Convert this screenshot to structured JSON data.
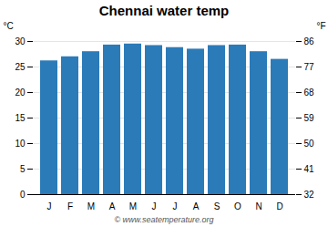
{
  "chart_data": {
    "type": "bar",
    "title": "Chennai water temp",
    "categories": [
      "J",
      "F",
      "M",
      "A",
      "M",
      "J",
      "J",
      "A",
      "S",
      "O",
      "N",
      "D"
    ],
    "values": [
      26.2,
      27.0,
      28.0,
      29.3,
      29.5,
      29.2,
      28.8,
      28.5,
      29.2,
      29.3,
      28.0,
      26.5
    ],
    "color": "#2b7bb9",
    "ylabel": "°C",
    "y2label": "°F",
    "ylim": [
      0,
      30
    ],
    "yticks": [
      0,
      5,
      10,
      15,
      20,
      25,
      30
    ],
    "y2lim": [
      32,
      86
    ],
    "y2ticks": [
      32,
      41,
      50,
      59,
      68,
      77,
      86
    ],
    "grid": true,
    "annotations": [
      "© www.seatemperature.org"
    ]
  }
}
